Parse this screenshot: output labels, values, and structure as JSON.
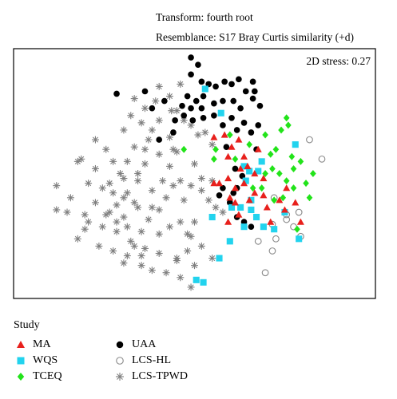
{
  "header": {
    "line1": "Transform: fourth root",
    "line2": "Resemblance: S17 Bray Curtis similarity (+d)"
  },
  "chart_data": {
    "type": "scatter",
    "title": "",
    "annotation": "2D stress: 0.27",
    "xlabel": "",
    "ylabel": "",
    "xlim": [
      0,
      100
    ],
    "ylim": [
      0,
      100
    ],
    "grid": false,
    "legend_position": "bottom-left",
    "legend_title": "Study",
    "series": [
      {
        "name": "MA",
        "marker": "triangle",
        "color": "#e8201c",
        "points": [
          [
            55.5,
            65
          ],
          [
            58.5,
            66
          ],
          [
            59.5,
            57
          ],
          [
            60.5,
            61
          ],
          [
            62.5,
            64
          ],
          [
            64,
            57
          ],
          [
            65,
            53
          ],
          [
            67,
            50
          ],
          [
            55.5,
            46
          ],
          [
            57,
            46
          ],
          [
            59.5,
            48
          ],
          [
            61.5,
            44
          ],
          [
            61.5,
            38
          ],
          [
            64,
            46
          ],
          [
            65.5,
            39
          ],
          [
            67,
            42
          ],
          [
            69.5,
            48
          ],
          [
            69.5,
            41
          ],
          [
            70.5,
            36
          ],
          [
            71.5,
            30
          ],
          [
            74,
            39
          ],
          [
            75.5,
            35
          ],
          [
            76,
            44
          ],
          [
            78.5,
            38
          ],
          [
            80,
            30
          ],
          [
            60,
            40
          ],
          [
            62.5,
            33
          ],
          [
            59.5,
            30
          ],
          [
            68,
            60
          ],
          [
            63,
            52
          ]
        ]
      },
      {
        "name": "WQS",
        "marker": "square",
        "color": "#22d3ee",
        "points": [
          [
            53,
            85
          ],
          [
            57.5,
            75
          ],
          [
            64,
            53
          ],
          [
            65.5,
            51
          ],
          [
            68,
            51
          ],
          [
            69,
            55
          ],
          [
            64.5,
            47
          ],
          [
            55,
            32
          ],
          [
            60.5,
            36
          ],
          [
            63,
            36
          ],
          [
            66,
            35
          ],
          [
            64,
            28
          ],
          [
            69.5,
            28
          ],
          [
            72.5,
            27
          ],
          [
            75.5,
            34
          ],
          [
            79.5,
            23
          ],
          [
            78.5,
            62
          ],
          [
            60,
            22
          ],
          [
            57,
            15
          ],
          [
            52.5,
            5
          ],
          [
            50.5,
            6
          ],
          [
            66,
            39
          ],
          [
            67.5,
            32
          ]
        ]
      },
      {
        "name": "TCEQ",
        "marker": "diamond",
        "color": "#22e31a",
        "points": [
          [
            47,
            60
          ],
          [
            56,
            60
          ],
          [
            60,
            66
          ],
          [
            65.5,
            62
          ],
          [
            70,
            66
          ],
          [
            71.5,
            58
          ],
          [
            74.5,
            68
          ],
          [
            76,
            73
          ],
          [
            77.5,
            57
          ],
          [
            70,
            50
          ],
          [
            72,
            52
          ],
          [
            74,
            50
          ],
          [
            76,
            47
          ],
          [
            78,
            52
          ],
          [
            80,
            55
          ],
          [
            75,
            40
          ],
          [
            81.5,
            46
          ],
          [
            82.5,
            40
          ],
          [
            83.5,
            50
          ],
          [
            79,
            27
          ],
          [
            72.5,
            39
          ],
          [
            69,
            44
          ],
          [
            66.5,
            44
          ],
          [
            55.5,
            56
          ],
          [
            76.5,
            70
          ],
          [
            73,
            60
          ],
          [
            78,
            44
          ],
          [
            61.5,
            56
          ]
        ]
      },
      {
        "name": "UAA",
        "marker": "circle",
        "color": "#000000",
        "points": [
          [
            49,
            98
          ],
          [
            49,
            91
          ],
          [
            51,
            95
          ],
          [
            36,
            84
          ],
          [
            52,
            88
          ],
          [
            54,
            87
          ],
          [
            56,
            86
          ],
          [
            58.5,
            88
          ],
          [
            60.5,
            87
          ],
          [
            62.5,
            89
          ],
          [
            64.5,
            84
          ],
          [
            66.5,
            88
          ],
          [
            67,
            84
          ],
          [
            48,
            82
          ],
          [
            50.5,
            80
          ],
          [
            52.5,
            82
          ],
          [
            46.5,
            78
          ],
          [
            49,
            77
          ],
          [
            52,
            77
          ],
          [
            55.5,
            79
          ],
          [
            58,
            80
          ],
          [
            61,
            80
          ],
          [
            63,
            77
          ],
          [
            66.5,
            81
          ],
          [
            68.5,
            78
          ],
          [
            47,
            74
          ],
          [
            49.5,
            72
          ],
          [
            52.5,
            73
          ],
          [
            55.5,
            74
          ],
          [
            58,
            70
          ],
          [
            60.5,
            73
          ],
          [
            62,
            68
          ],
          [
            64,
            71
          ],
          [
            66,
            67
          ],
          [
            68,
            70
          ],
          [
            44.5,
            72
          ],
          [
            41.5,
            80
          ],
          [
            38,
            77
          ],
          [
            40,
            64
          ],
          [
            44,
            67
          ],
          [
            28,
            83
          ],
          [
            59,
            61
          ],
          [
            61.5,
            52
          ],
          [
            63.5,
            49
          ],
          [
            62,
            44
          ],
          [
            58,
            44
          ],
          [
            60,
            38
          ],
          [
            62,
            32
          ],
          [
            64,
            30
          ],
          [
            66,
            28
          ],
          [
            61,
            42
          ],
          [
            57,
            41
          ],
          [
            67.5,
            60
          ]
        ]
      },
      {
        "name": "LCS-HL",
        "marker": "open-circle",
        "color": "#888888",
        "points": [
          [
            82.5,
            64
          ],
          [
            86,
            56
          ],
          [
            76,
            33
          ],
          [
            79.5,
            34
          ],
          [
            78,
            28
          ],
          [
            80,
            24
          ],
          [
            72,
            29
          ],
          [
            68,
            22
          ],
          [
            72,
            18
          ],
          [
            73,
            23
          ],
          [
            72.5,
            40
          ],
          [
            76,
            31
          ],
          [
            70,
            9
          ]
        ]
      },
      {
        "name": "LCS-TPWD",
        "marker": "star",
        "color": "#7f7f7f",
        "points": [
          [
            36,
            77
          ],
          [
            40,
            86
          ],
          [
            43.5,
            76
          ],
          [
            45,
            76
          ],
          [
            47,
            72
          ],
          [
            49,
            70
          ],
          [
            51,
            66
          ],
          [
            53,
            67
          ],
          [
            55,
            62
          ],
          [
            33,
            81
          ],
          [
            35,
            71
          ],
          [
            38,
            68
          ],
          [
            33,
            61
          ],
          [
            30,
            68
          ],
          [
            36,
            54
          ],
          [
            40,
            58
          ],
          [
            43,
            53
          ],
          [
            46,
            47
          ],
          [
            49,
            45
          ],
          [
            52,
            43
          ],
          [
            54,
            39
          ],
          [
            56,
            36
          ],
          [
            58,
            34
          ],
          [
            55,
            47
          ],
          [
            50,
            54
          ],
          [
            45,
            59
          ],
          [
            40,
            72
          ],
          [
            31,
            55
          ],
          [
            27,
            55
          ],
          [
            26,
            46
          ],
          [
            22,
            52
          ],
          [
            20,
            46
          ],
          [
            18,
            56
          ],
          [
            22,
            38
          ],
          [
            25,
            33
          ],
          [
            28,
            37
          ],
          [
            31,
            42
          ],
          [
            34,
            36
          ],
          [
            37,
            31
          ],
          [
            40,
            35
          ],
          [
            43,
            28
          ],
          [
            46,
            30
          ],
          [
            49,
            24
          ],
          [
            52,
            20
          ],
          [
            55,
            15
          ],
          [
            50,
            12
          ],
          [
            45,
            14
          ],
          [
            40,
            17
          ],
          [
            36,
            19
          ],
          [
            32,
            22
          ],
          [
            28,
            26
          ],
          [
            35,
            26
          ],
          [
            30,
            32
          ],
          [
            38,
            43
          ],
          [
            42,
            40
          ],
          [
            44,
            45
          ],
          [
            34,
            47
          ],
          [
            29,
            50
          ],
          [
            24,
            44
          ],
          [
            17,
            55
          ],
          [
            15,
            40
          ],
          [
            19,
            33
          ],
          [
            24,
            28
          ],
          [
            31,
            16
          ],
          [
            33,
            20
          ],
          [
            38,
            10
          ],
          [
            42,
            9
          ],
          [
            46,
            7
          ],
          [
            49,
            3
          ],
          [
            40,
            25
          ],
          [
            35,
            12
          ],
          [
            30,
            40
          ],
          [
            34,
            50
          ],
          [
            43,
            65
          ],
          [
            38,
            36
          ],
          [
            31,
            28
          ],
          [
            26,
            34
          ],
          [
            20,
            30
          ],
          [
            17,
            23
          ],
          [
            11,
            45
          ],
          [
            11,
            35
          ],
          [
            14,
            34
          ],
          [
            19,
            27
          ],
          [
            23,
            20
          ],
          [
            27,
            18
          ],
          [
            30,
            13
          ],
          [
            35,
            16
          ],
          [
            45,
            15
          ],
          [
            48,
            18
          ],
          [
            27,
            42
          ],
          [
            36,
            60
          ],
          [
            41,
            47
          ],
          [
            47,
            39
          ],
          [
            30,
            48
          ],
          [
            25,
            60
          ],
          [
            22,
            64
          ],
          [
            32,
            74
          ],
          [
            43,
            82
          ],
          [
            46,
            87
          ],
          [
            39,
            80
          ],
          [
            37,
            64
          ],
          [
            44,
            60
          ],
          [
            33,
            38
          ],
          [
            28,
            30
          ],
          [
            50,
            30
          ],
          [
            52,
            48
          ],
          [
            48,
            25
          ]
        ]
      }
    ],
    "legend_items": [
      {
        "label": "MA",
        "marker": "triangle",
        "color": "#e8201c"
      },
      {
        "label": "WQS",
        "marker": "square",
        "color": "#22d3ee"
      },
      {
        "label": "TCEQ",
        "marker": "diamond",
        "color": "#22e31a"
      },
      {
        "label": "UAA",
        "marker": "circle",
        "color": "#000000"
      },
      {
        "label": "LCS-HL",
        "marker": "open-circle",
        "color": "#888888"
      },
      {
        "label": "LCS-TPWD",
        "marker": "star",
        "color": "#7f7f7f"
      }
    ]
  }
}
